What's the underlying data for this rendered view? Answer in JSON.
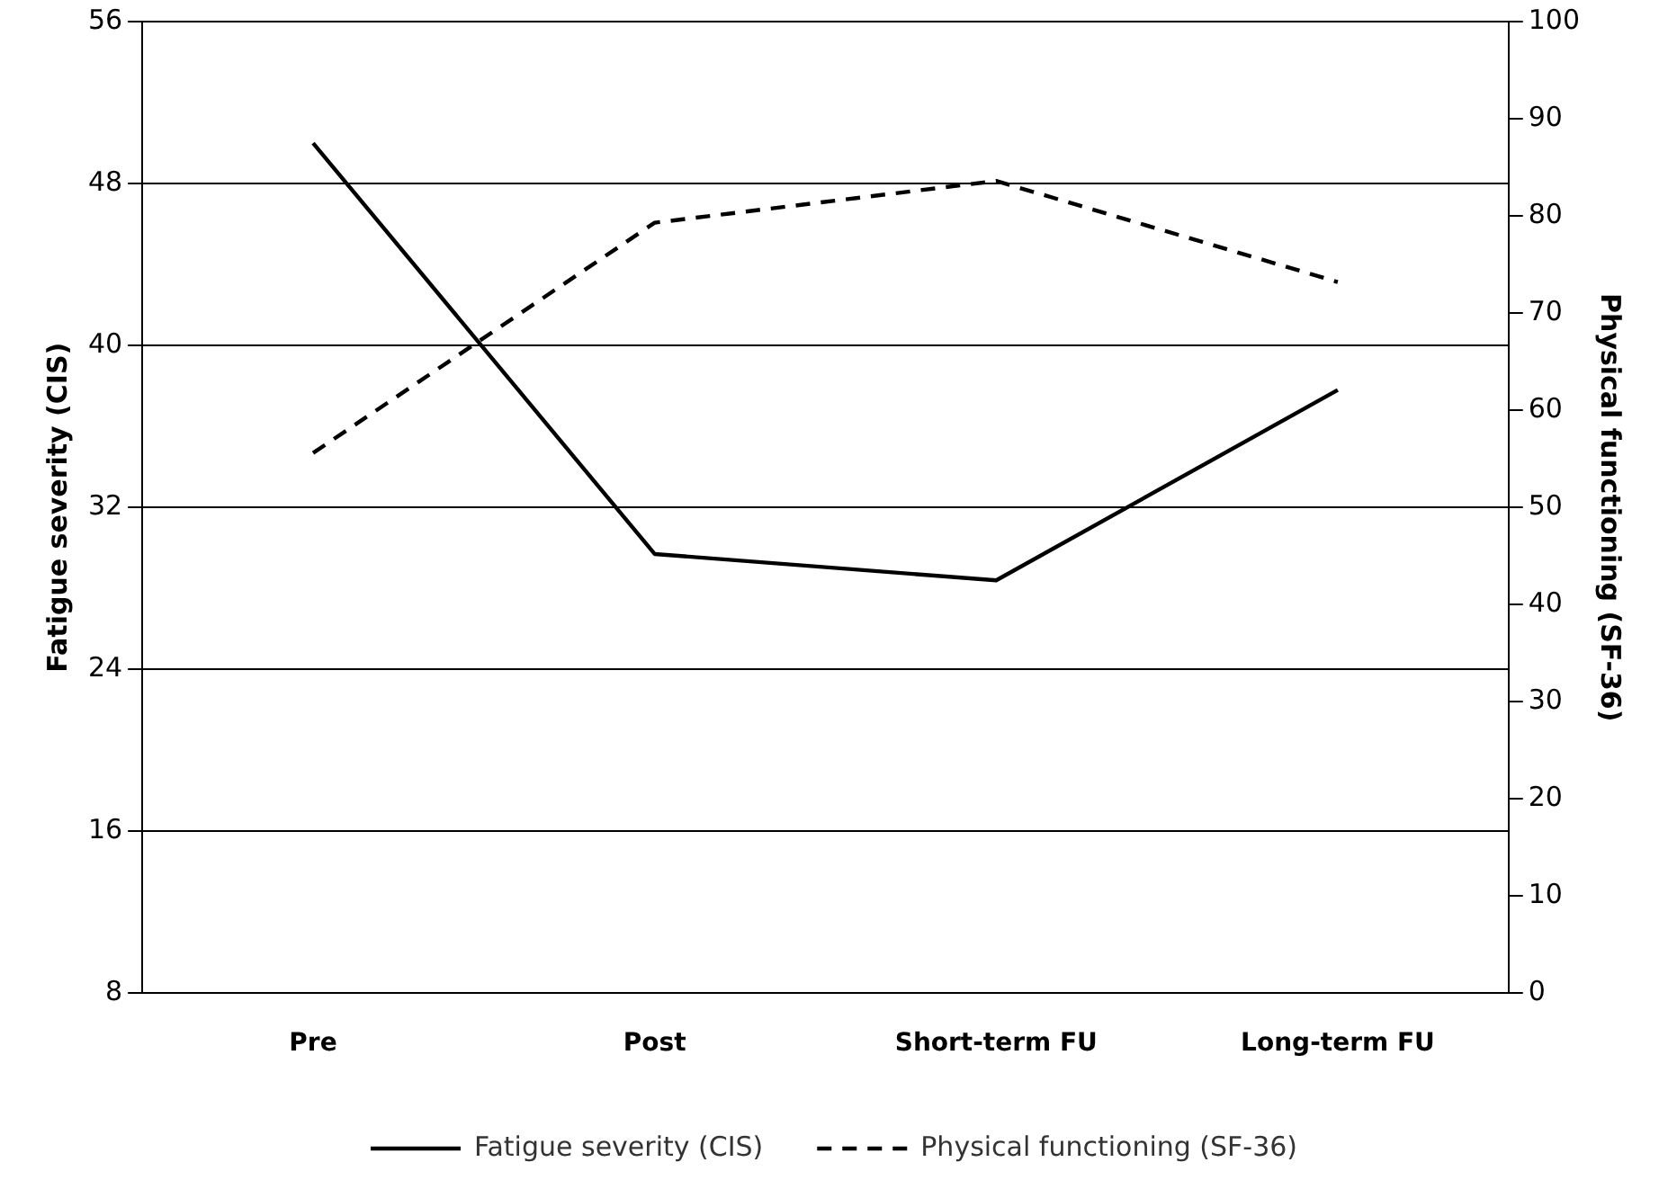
{
  "chart_data": {
    "type": "line",
    "categories": [
      "Pre",
      "Post",
      "Short-term FU",
      "Long-term FU"
    ],
    "ylabel": "Fatigue severity (CIS)",
    "y2label": "Physical functioning (SF-36)",
    "ylim": [
      8,
      56
    ],
    "yticks": [
      8,
      16,
      24,
      32,
      40,
      48,
      56
    ],
    "y2lim": [
      0,
      100
    ],
    "y2ticks": [
      0,
      10,
      20,
      30,
      40,
      50,
      60,
      70,
      80,
      90,
      100
    ],
    "grid": "y",
    "legend": "bottom",
    "marker": "none",
    "series": [
      {
        "name": "Fatigue severity (CIS)",
        "color": "#000000",
        "values": [
          50,
          29.7,
          28.4,
          37.8
        ],
        "line_style": "solid"
      },
      {
        "name": "Physical functioning (SF-36)",
        "color": "#000000",
        "values": [
          55.6,
          79.3,
          83.6,
          73.2
        ],
        "axis": "y2",
        "line_style": "dashed"
      }
    ]
  }
}
